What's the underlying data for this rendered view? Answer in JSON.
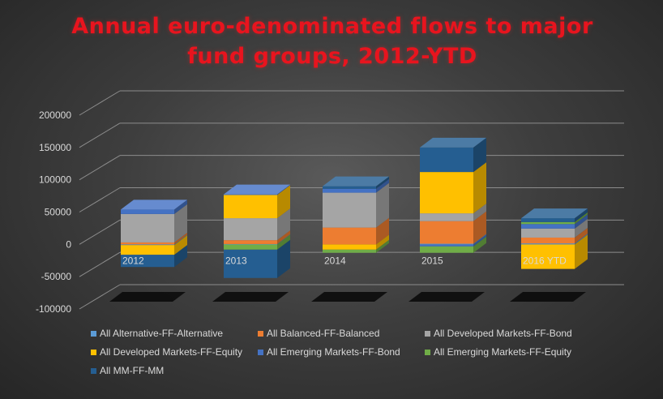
{
  "title": "Annual euro-denominated flows to major fund groups, 2012-YTD",
  "title_lines": [
    "Annual euro-denominated flows to major",
    "fund groups, 2012-YTD"
  ],
  "colors": {
    "background": "#3e3e3e",
    "title": "#e8141e",
    "grid": "#8c8c8c",
    "axis_text": "#d9d9d9"
  },
  "chart_data": {
    "type": "bar",
    "stacked": true,
    "style": "3d",
    "categories": [
      "2012",
      "2013",
      "2014",
      "2015",
      "2016 YTD"
    ],
    "ylim": [
      -100000,
      200000
    ],
    "yticks": [
      -100000,
      -50000,
      0,
      50000,
      100000,
      150000,
      200000
    ],
    "grid": true,
    "legend_position": "bottom",
    "series": [
      {
        "name": "All Alternative-FF-Alternative",
        "color": "#5b9bd5",
        "values": [
          -1000,
          500,
          0,
          1000,
          1500
        ]
      },
      {
        "name": "All Balanced-FF-Balanced",
        "color": "#ed7d31",
        "values": [
          3000,
          6000,
          26000,
          35000,
          9000
        ]
      },
      {
        "name": "All Developed Markets-FF-Bond",
        "color": "#a5a5a5",
        "values": [
          44000,
          34000,
          54000,
          12000,
          14000
        ]
      },
      {
        "name": "All Developed Markets-FF-Equity",
        "color": "#ffc000",
        "values": [
          -15000,
          36000,
          -8000,
          64000,
          -38000
        ]
      },
      {
        "name": "All Emerging Markets-FF-Bond",
        "color": "#4472c4",
        "values": [
          7000,
          1000,
          6000,
          -3000,
          7000
        ]
      },
      {
        "name": "All Emerging Markets-FF-Equity",
        "color": "#70ad47",
        "values": [
          0,
          -8000,
          -5000,
          -10000,
          3000
        ]
      },
      {
        "name": "All MM-FF-MM",
        "color": "#255e91",
        "values": [
          -19000,
          -44000,
          4000,
          38000,
          6000
        ]
      }
    ]
  }
}
